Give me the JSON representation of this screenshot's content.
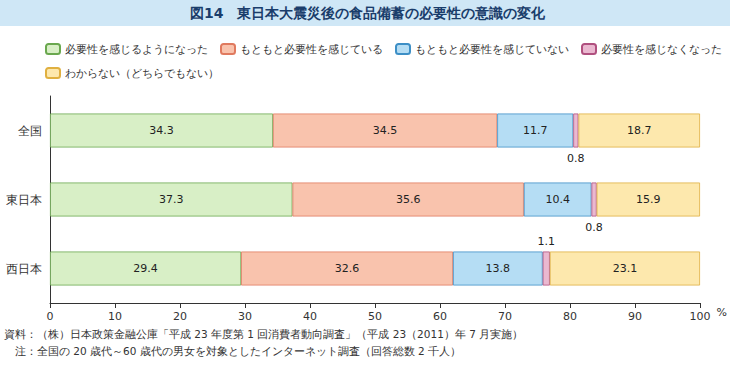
{
  "chart_data": {
    "type": "bar",
    "orientation": "horizontal",
    "stacked": true,
    "data_labels": true,
    "title": "図14　東日本大震災後の食品備蓄の必要性の意識の変化",
    "categories": [
      "全国",
      "東日本",
      "西日本"
    ],
    "series": [
      {
        "name": "必要性を感じるようになった",
        "color": "#d8efc6",
        "values": [
          34.3,
          37.3,
          29.4
        ]
      },
      {
        "name": "もともと必要性を感じている",
        "color": "#f9c3ad",
        "values": [
          34.5,
          35.6,
          32.6
        ]
      },
      {
        "name": "もともと必要性を感じていない",
        "color": "#b5ddf4",
        "values": [
          11.7,
          10.4,
          13.8
        ]
      },
      {
        "name": "必要性を感じなくなった",
        "color": "#eab8d0",
        "values": [
          0.8,
          0.8,
          1.1
        ]
      },
      {
        "name": "わからない（どちらでもない）",
        "color": "#fde8ad",
        "values": [
          18.7,
          15.9,
          23.1
        ]
      }
    ],
    "xlabel": "%",
    "xlim": [
      0,
      100
    ],
    "xticks": [
      0,
      10,
      20,
      30,
      40,
      50,
      60,
      70,
      80,
      90,
      100
    ],
    "grid": false,
    "legend": "top",
    "notes": [
      "資料：（株）日本政策金融公庫「平成 23 年度第 1 回消費者動向調査」（平成 23（2011）年 7 月実施）",
      "　注：全国の 20 歳代～60 歳代の男女を対象としたインターネット調査（回答総数 2 千人）"
    ]
  }
}
